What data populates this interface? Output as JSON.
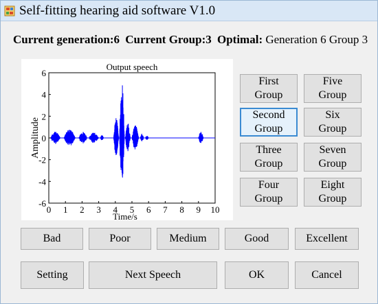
{
  "window": {
    "title": "Self-fitting hearing aid software V1.0"
  },
  "status": {
    "current_generation_label": "Current generation:",
    "current_generation_value": "6",
    "current_group_label": "Current Group:",
    "current_group_value": "3",
    "optimal_label": "Optimal:",
    "optimal_value": "Generation 6 Group 3"
  },
  "chart_data": {
    "type": "line",
    "title": "Output speech",
    "xlabel": "Time/s",
    "ylabel": "Amplitude",
    "xlim": [
      0,
      10
    ],
    "ylim": [
      -6,
      6
    ],
    "x_ticks": [
      0,
      1,
      2,
      3,
      4,
      5,
      6,
      7,
      8,
      9,
      10
    ],
    "y_ticks": [
      -6,
      -4,
      -2,
      0,
      2,
      4,
      6
    ],
    "series": [
      {
        "color": "#0000ff",
        "bursts": [
          {
            "start": 0.1,
            "end": 0.7,
            "amp": 0.6
          },
          {
            "start": 0.9,
            "end": 1.6,
            "amp": 0.8
          },
          {
            "start": 1.8,
            "end": 2.3,
            "amp": 0.6
          },
          {
            "start": 2.4,
            "end": 3.0,
            "amp": 0.5
          },
          {
            "start": 3.1,
            "end": 3.3,
            "amp": 0.3
          },
          {
            "start": 3.9,
            "end": 4.2,
            "amp": 2.0
          },
          {
            "start": 4.25,
            "end": 4.55,
            "amp": 5.3
          },
          {
            "start": 4.6,
            "end": 4.9,
            "amp": 1.4
          },
          {
            "start": 5.0,
            "end": 5.4,
            "amp": 1.2
          },
          {
            "start": 5.5,
            "end": 5.7,
            "amp": 0.4
          },
          {
            "start": 5.8,
            "end": 6.0,
            "amp": 0.2
          },
          {
            "start": 9.0,
            "end": 9.3,
            "amp": 0.6
          }
        ]
      }
    ]
  },
  "groups": [
    {
      "line1": "First",
      "line2": "Group"
    },
    {
      "line1": "Five",
      "line2": "Group"
    },
    {
      "line1": "Second",
      "line2": "Group"
    },
    {
      "line1": "Six",
      "line2": "Group"
    },
    {
      "line1": "Three",
      "line2": "Group"
    },
    {
      "line1": "Seven",
      "line2": "Group"
    },
    {
      "line1": "Four",
      "line2": "Group"
    },
    {
      "line1": "Eight",
      "line2": "Group"
    }
  ],
  "ratings": {
    "bad": "Bad",
    "poor": "Poor",
    "medium": "Medium",
    "good": "Good",
    "excellent": "Excellent"
  },
  "actions": {
    "setting": "Setting",
    "next_speech": "Next Speech",
    "ok": "OK",
    "cancel": "Cancel"
  }
}
